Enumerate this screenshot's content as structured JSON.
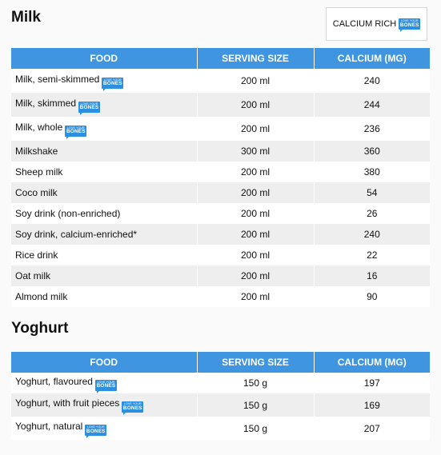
{
  "legend": {
    "text": "CALCIUM RICH",
    "badge_top": "LOVE YOUR",
    "badge_bottom": "BONES"
  },
  "sections": [
    {
      "title": "Milk",
      "headers": [
        "FOOD",
        "SERVING SIZE",
        "CALCIUM (MG)"
      ],
      "rows": [
        {
          "food": "Milk, semi-skimmed",
          "serving": "200 ml",
          "calcium": "240",
          "badge": true
        },
        {
          "food": "Milk, skimmed",
          "serving": "200 ml",
          "calcium": "244",
          "badge": true
        },
        {
          "food": "Milk, whole",
          "serving": "200 ml",
          "calcium": "236",
          "badge": true
        },
        {
          "food": "Milkshake",
          "serving": "300 ml",
          "calcium": "360",
          "badge": false
        },
        {
          "food": "Sheep milk",
          "serving": "200 ml",
          "calcium": "380",
          "badge": false
        },
        {
          "food": "Coco milk",
          "serving": "200 ml",
          "calcium": "54",
          "badge": false
        },
        {
          "food": "Soy drink (non-enriched)",
          "serving": "200 ml",
          "calcium": "26",
          "badge": false
        },
        {
          "food": "Soy drink, calcium-enriched*",
          "serving": "200 ml",
          "calcium": "240",
          "badge": false
        },
        {
          "food": "Rice drink",
          "serving": "200 ml",
          "calcium": "22",
          "badge": false
        },
        {
          "food": "Oat milk",
          "serving": "200 ml",
          "calcium": "16",
          "badge": false
        },
        {
          "food": "Almond milk",
          "serving": "200 ml",
          "calcium": "90",
          "badge": false
        }
      ]
    },
    {
      "title": "Yoghurt",
      "headers": [
        "FOOD",
        "SERVING SIZE",
        "CALCIUM (MG)"
      ],
      "rows": [
        {
          "food": "Yoghurt, flavoured",
          "serving": "150 g",
          "calcium": "197",
          "badge": true
        },
        {
          "food": "Yoghurt, with fruit pieces",
          "serving": "150 g",
          "calcium": "169",
          "badge": true
        },
        {
          "food": "Yoghurt, natural",
          "serving": "150 g",
          "calcium": "207",
          "badge": true
        }
      ]
    }
  ]
}
